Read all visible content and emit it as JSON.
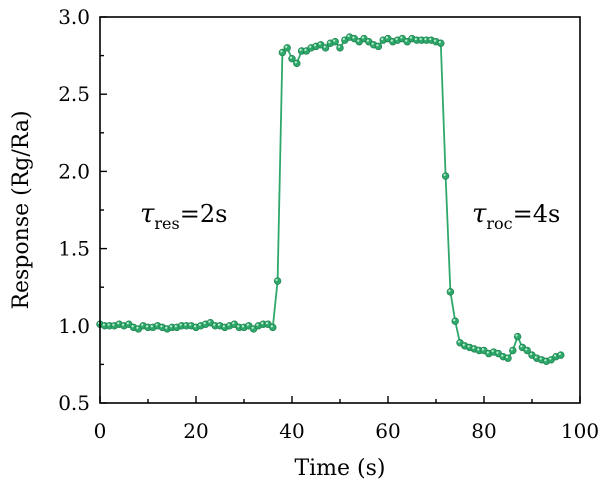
{
  "chart_data": {
    "type": "line",
    "title": "",
    "xlabel": "Time (s)",
    "ylabel": "Response (Rg/Ra)",
    "xlim": [
      0,
      100
    ],
    "ylim": [
      0.5,
      3.0
    ],
    "xticks": [
      "0",
      "20",
      "40",
      "60",
      "80",
      "100"
    ],
    "yticks": [
      "0.5",
      "1.0",
      "1.5",
      "2.0",
      "2.5",
      "3.0"
    ],
    "grid": false,
    "legend": "none",
    "color": "#2ea86a",
    "annotations": [
      {
        "symbol": "τ",
        "sub": "res",
        "value": "=2s"
      },
      {
        "symbol": "τ",
        "sub": "roc",
        "value": "=4s"
      }
    ],
    "series": [
      {
        "x": [
          0,
          1,
          2,
          3,
          4,
          5,
          6,
          7,
          8,
          9,
          10,
          11,
          12,
          13,
          14,
          15,
          16,
          17,
          18,
          19,
          20,
          21,
          22,
          23,
          24,
          25,
          26,
          27,
          28,
          29,
          30,
          31,
          32,
          33,
          34,
          35,
          36,
          37,
          38,
          39,
          40,
          41,
          42,
          43,
          44,
          45,
          46,
          47,
          48,
          49,
          50,
          51,
          52,
          53,
          54,
          55,
          56,
          57,
          58,
          59,
          60,
          61,
          62,
          63,
          64,
          65,
          66,
          67,
          68,
          69,
          70,
          71,
          72,
          73,
          74,
          75,
          76,
          77,
          78,
          79,
          80,
          81,
          82,
          83,
          84,
          85,
          86,
          87,
          88,
          89,
          90,
          91,
          92,
          93,
          94,
          95,
          96
        ],
        "y": [
          1.01,
          1.0,
          1.0,
          1.0,
          1.01,
          1.0,
          1.01,
          0.99,
          0.98,
          1.0,
          0.99,
          0.99,
          1.0,
          0.99,
          0.98,
          0.99,
          0.99,
          1.0,
          1.0,
          1.0,
          0.99,
          1.0,
          1.01,
          1.02,
          1.0,
          1.0,
          0.99,
          1.0,
          1.01,
          0.99,
          0.99,
          1.0,
          0.98,
          1.0,
          1.01,
          1.01,
          0.99,
          1.29,
          2.77,
          2.8,
          2.73,
          2.7,
          2.78,
          2.78,
          2.8,
          2.81,
          2.82,
          2.8,
          2.83,
          2.84,
          2.8,
          2.85,
          2.87,
          2.86,
          2.84,
          2.86,
          2.84,
          2.82,
          2.81,
          2.85,
          2.86,
          2.84,
          2.85,
          2.86,
          2.84,
          2.86,
          2.85,
          2.85,
          2.85,
          2.85,
          2.84,
          2.83,
          1.97,
          1.22,
          1.03,
          0.89,
          0.87,
          0.86,
          0.85,
          0.84,
          0.84,
          0.82,
          0.83,
          0.82,
          0.8,
          0.79,
          0.84,
          0.93,
          0.86,
          0.84,
          0.81,
          0.79,
          0.78,
          0.77,
          0.78,
          0.8,
          0.81
        ]
      }
    ]
  }
}
